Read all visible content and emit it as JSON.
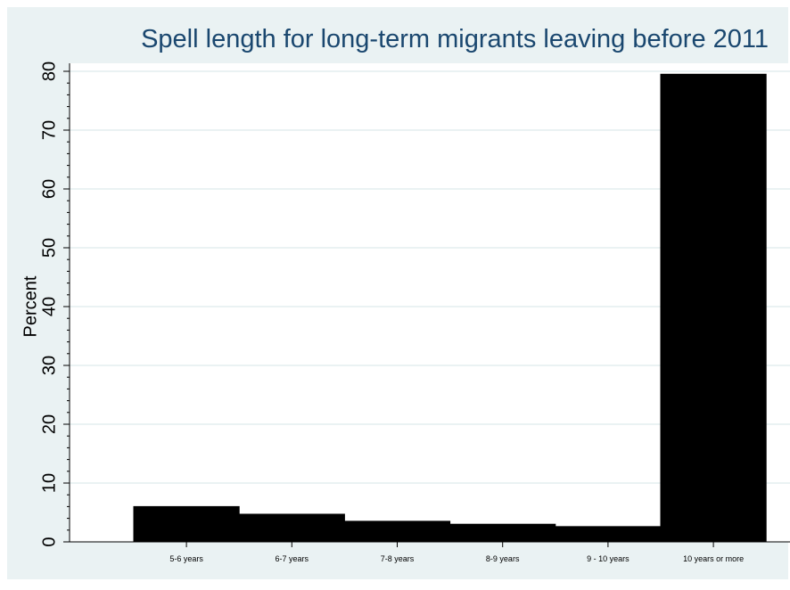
{
  "chart_data": {
    "type": "bar",
    "title": "Spell length for long-term migrants leaving before 2011",
    "ylabel": "Percent",
    "xlabel": "",
    "categories": [
      "5-6 years",
      "6-7 years",
      "7-8 years",
      "8-9 years",
      "9 - 10 years",
      "10 years or more"
    ],
    "values": [
      6.0,
      4.7,
      3.5,
      3.0,
      2.6,
      79.5
    ],
    "ylim": [
      0,
      80
    ],
    "yticks": [
      "0",
      "10",
      "20",
      "30",
      "40",
      "50",
      "60",
      "70",
      "80"
    ],
    "grid": true,
    "colors": {
      "bar": "#000000",
      "background": "#eaf2f3",
      "plot": "#ffffff",
      "title": "#1a476f"
    }
  }
}
